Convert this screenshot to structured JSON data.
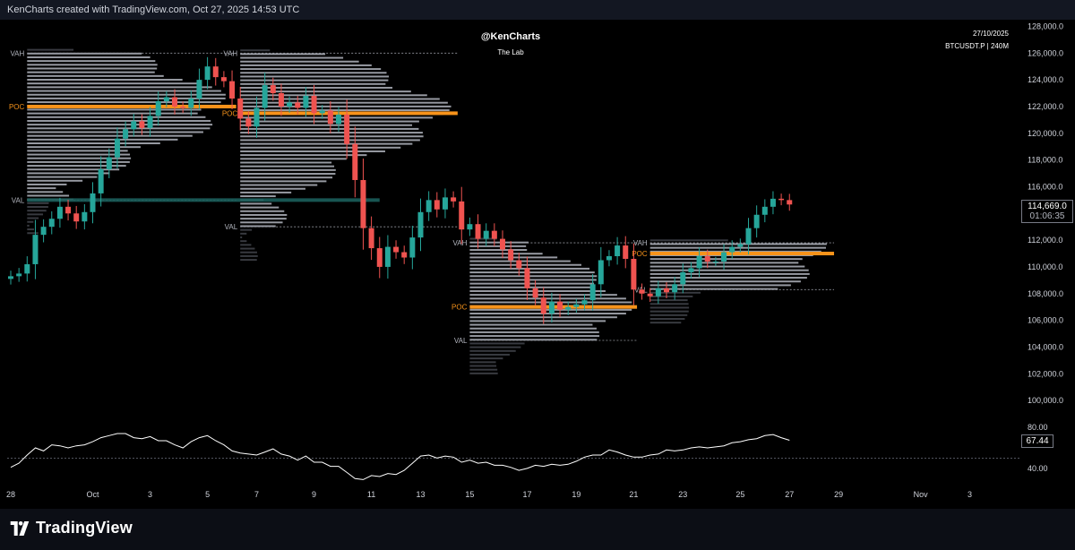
{
  "header": {
    "caption": "KenCharts created with TradingView.com, Oct 27, 2025 14:53 UTC"
  },
  "watermark": {
    "author": "@KenCharts",
    "sub": "The Lab"
  },
  "info": {
    "date": "27/10/2025",
    "symbol": "BTCUSDT.P | 240M"
  },
  "footer": {
    "brand": "TradingView"
  },
  "price_badge": {
    "price": "114,669.0",
    "countdown": "01:06:35"
  },
  "osc_badge": {
    "value": "67.44"
  },
  "colors": {
    "up": "#26a69a",
    "down": "#ef5350",
    "poc": "#f7931a",
    "profile": "#b2b5be",
    "vah_line": "#9598a1",
    "val_band": "#1b5e5b",
    "oscillator": "#ffffff"
  },
  "chart_data": {
    "type": "line",
    "series": [
      {
        "values": [
          [
            0,
            109300
          ],
          [
            1,
            109500
          ],
          [
            2,
            110200
          ],
          [
            3,
            112400
          ],
          [
            4,
            113000
          ],
          [
            5,
            113600
          ],
          [
            6,
            114500
          ],
          [
            7,
            114000
          ],
          [
            8,
            113400
          ],
          [
            9,
            114100
          ],
          [
            10,
            115500
          ],
          [
            11,
            117300
          ],
          [
            12,
            118200
          ],
          [
            13,
            119600
          ],
          [
            14,
            120300
          ],
          [
            15,
            120900
          ],
          [
            16,
            120400
          ],
          [
            17,
            121300
          ],
          [
            18,
            122400
          ],
          [
            19,
            122700
          ],
          [
            20,
            122000
          ],
          [
            21,
            121900
          ],
          [
            22,
            122600
          ],
          [
            23,
            124000
          ],
          [
            24,
            125000
          ],
          [
            25,
            124200
          ],
          [
            26,
            123900
          ],
          [
            27,
            122600
          ],
          [
            28,
            121100
          ],
          [
            29,
            120500
          ],
          [
            30,
            121900
          ],
          [
            31,
            123600
          ],
          [
            32,
            123000
          ],
          [
            33,
            122000
          ],
          [
            34,
            122300
          ],
          [
            35,
            121900
          ],
          [
            36,
            122800
          ],
          [
            37,
            121500
          ],
          [
            38,
            121700
          ],
          [
            39,
            120700
          ],
          [
            40,
            121400
          ],
          [
            41,
            119200
          ],
          [
            42,
            116500
          ],
          [
            43,
            112900
          ],
          [
            44,
            111400
          ],
          [
            45,
            110000
          ],
          [
            46,
            111500
          ],
          [
            47,
            111100
          ],
          [
            48,
            110700
          ],
          [
            49,
            112200
          ],
          [
            50,
            114100
          ],
          [
            51,
            115000
          ],
          [
            52,
            114300
          ],
          [
            53,
            115200
          ],
          [
            54,
            114900
          ],
          [
            55,
            112800
          ],
          [
            56,
            113200
          ],
          [
            57,
            112100
          ],
          [
            58,
            112700
          ],
          [
            59,
            112100
          ],
          [
            60,
            111300
          ],
          [
            61,
            110500
          ],
          [
            62,
            109900
          ],
          [
            63,
            108400
          ],
          [
            64,
            107700
          ],
          [
            65,
            106500
          ],
          [
            66,
            107400
          ],
          [
            67,
            106800
          ],
          [
            68,
            107000
          ],
          [
            69,
            107200
          ],
          [
            70,
            107500
          ],
          [
            71,
            108700
          ],
          [
            72,
            110500
          ],
          [
            73,
            110800
          ],
          [
            74,
            111600
          ],
          [
            75,
            110600
          ],
          [
            76,
            108300
          ],
          [
            77,
            108000
          ],
          [
            78,
            107800
          ],
          [
            79,
            108400
          ],
          [
            80,
            108100
          ],
          [
            81,
            108700
          ],
          [
            82,
            109600
          ],
          [
            83,
            109900
          ],
          [
            84,
            110800
          ],
          [
            85,
            110400
          ],
          [
            86,
            110400
          ],
          [
            87,
            111100
          ],
          [
            88,
            111500
          ],
          [
            89,
            111700
          ],
          [
            90,
            112900
          ],
          [
            91,
            113900
          ],
          [
            92,
            114500
          ],
          [
            93,
            115100
          ],
          [
            94,
            115000
          ],
          [
            95,
            114669
          ]
        ]
      },
      {
        "values": [
          [
            0,
            41
          ],
          [
            1,
            45
          ],
          [
            2,
            53
          ],
          [
            3,
            60
          ],
          [
            4,
            57
          ],
          [
            5,
            63
          ],
          [
            6,
            62
          ],
          [
            7,
            60
          ],
          [
            8,
            62
          ],
          [
            9,
            63
          ],
          [
            10,
            66
          ],
          [
            11,
            70
          ],
          [
            12,
            72
          ],
          [
            13,
            74
          ],
          [
            14,
            74
          ],
          [
            15,
            70
          ],
          [
            16,
            69
          ],
          [
            17,
            71
          ],
          [
            18,
            67
          ],
          [
            19,
            67
          ],
          [
            20,
            63
          ],
          [
            21,
            60
          ],
          [
            22,
            66
          ],
          [
            23,
            70
          ],
          [
            24,
            72
          ],
          [
            25,
            67
          ],
          [
            26,
            63
          ],
          [
            27,
            57
          ],
          [
            28,
            55
          ],
          [
            29,
            54
          ],
          [
            30,
            53
          ],
          [
            31,
            56
          ],
          [
            32,
            59
          ],
          [
            33,
            54
          ],
          [
            34,
            52
          ],
          [
            35,
            48
          ],
          [
            36,
            52
          ],
          [
            37,
            46
          ],
          [
            38,
            46
          ],
          [
            39,
            42
          ],
          [
            40,
            42
          ],
          [
            41,
            36
          ],
          [
            42,
            30
          ],
          [
            43,
            29
          ],
          [
            44,
            33
          ],
          [
            45,
            32
          ],
          [
            46,
            35
          ],
          [
            47,
            34
          ],
          [
            48,
            38
          ],
          [
            49,
            45
          ],
          [
            50,
            52
          ],
          [
            51,
            53
          ],
          [
            52,
            50
          ],
          [
            53,
            52
          ],
          [
            54,
            51
          ],
          [
            55,
            46
          ],
          [
            56,
            48
          ],
          [
            57,
            45
          ],
          [
            58,
            46
          ],
          [
            59,
            43
          ],
          [
            60,
            43
          ],
          [
            61,
            41
          ],
          [
            62,
            38
          ],
          [
            63,
            40
          ],
          [
            64,
            43
          ],
          [
            65,
            42
          ],
          [
            66,
            44
          ],
          [
            67,
            43
          ],
          [
            68,
            44
          ],
          [
            69,
            47
          ],
          [
            70,
            51
          ],
          [
            71,
            53
          ],
          [
            72,
            53
          ],
          [
            73,
            58
          ],
          [
            74,
            56
          ],
          [
            75,
            53
          ],
          [
            76,
            51
          ],
          [
            77,
            51
          ],
          [
            78,
            53
          ],
          [
            79,
            54
          ],
          [
            80,
            58
          ],
          [
            81,
            57
          ],
          [
            82,
            58
          ],
          [
            83,
            60
          ],
          [
            84,
            61
          ],
          [
            85,
            60
          ],
          [
            86,
            61
          ],
          [
            87,
            62
          ],
          [
            88,
            65
          ],
          [
            89,
            66
          ],
          [
            90,
            68
          ],
          [
            91,
            69
          ],
          [
            92,
            72
          ],
          [
            93,
            73
          ],
          [
            94,
            70
          ],
          [
            95,
            67.44
          ]
        ]
      }
    ],
    "xlabel": "",
    "ylabel": "",
    "x_ticks": [
      "28",
      "Oct",
      "3",
      "5",
      "7",
      "9",
      "11",
      "13",
      "15",
      "17",
      "19",
      "21",
      "23",
      "25",
      "27",
      "29",
      "Nov",
      "3"
    ],
    "y_ticks": [
      "128,000.0",
      "126,000.0",
      "124,000.0",
      "122,000.0",
      "120,000.0",
      "118,000.0",
      "116,000.0",
      "114,000.0",
      "112,000.0",
      "110,000.0",
      "108,000.0",
      "106,000.0",
      "104,000.0",
      "102,000.0",
      "100,000.0"
    ],
    "ylim": [
      99000,
      128500
    ],
    "oscillator": {
      "y_ticks": [
        "80.00",
        "40.00"
      ],
      "ylim": [
        25,
        88
      ],
      "midline": 50
    },
    "volume_profiles": [
      {
        "start": 2,
        "end": 27,
        "vah": 126000,
        "poc": 122000,
        "val": 115000,
        "vah_label": "VAH",
        "poc_label": "POC",
        "val_label": "VAL"
      },
      {
        "start": 28,
        "end": 54,
        "vah": 126000,
        "poc": 121500,
        "val": 113000,
        "vah_label": "VAH",
        "poc_label": "POC",
        "val_label": "VAL"
      },
      {
        "start": 56,
        "end": 76,
        "vah": 111800,
        "poc": 107000,
        "val": 104500,
        "vah_label": "VAH",
        "poc_label": "POC",
        "val_label": "VAL"
      },
      {
        "start": 78,
        "end": 100,
        "vah": 111800,
        "poc": 111000,
        "val": 108300,
        "vah_label": "VAH",
        "poc_label": "POC",
        "val_label": "VAL"
      }
    ]
  }
}
